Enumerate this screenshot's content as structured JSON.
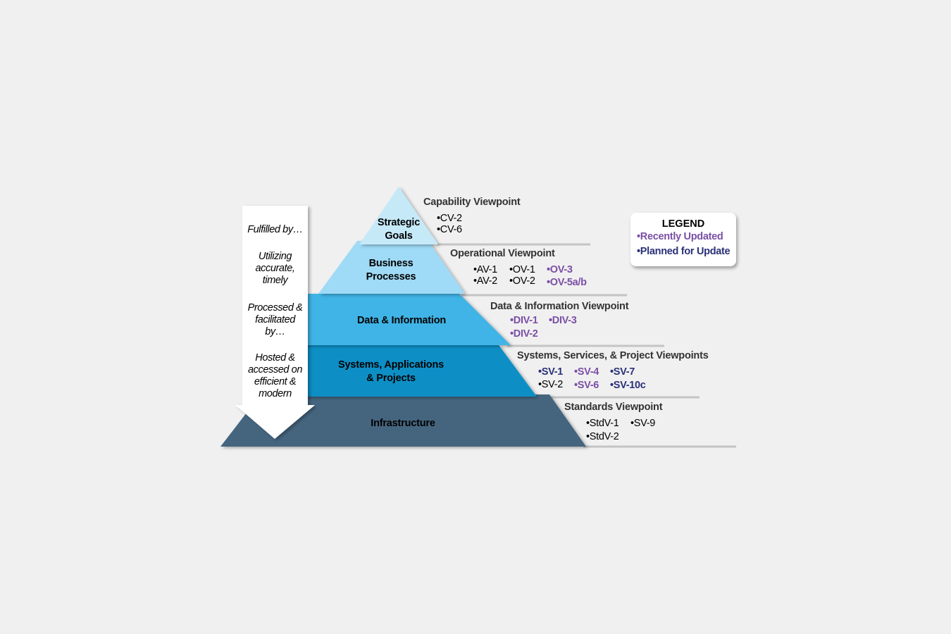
{
  "colors": {
    "recently_updated": "#7b4fa6",
    "planned_for_update": "#2a3178",
    "layer_strategic": "#c6e9f8",
    "layer_business": "#9fdaf6",
    "layer_data": "#41b4e6",
    "layer_systems": "#0a8fc6",
    "layer_infrastructure": "#45657f"
  },
  "pyramid": {
    "strategic": [
      "Strategic",
      "Goals"
    ],
    "business": [
      "Business",
      "Processes"
    ],
    "data": "Data & Information",
    "systems": [
      "Systems, Applications",
      "& Projects"
    ],
    "infrastructure": "Infrastructure"
  },
  "arrow": {
    "fulfilled": "Fulfilled by…",
    "utilizing": [
      "Utilizing",
      "accurate,",
      "timely"
    ],
    "processed": [
      "Processed &",
      "facilitated",
      "by…"
    ],
    "hosted": [
      "Hosted &",
      "accessed on",
      "efficient &",
      "modern"
    ]
  },
  "viewpoints": {
    "capability": {
      "title": "Capability Viewpoint",
      "items": [
        "•CV-2",
        "•CV-6"
      ]
    },
    "operational": {
      "title": "Operational Viewpoint",
      "items": [
        "•AV-1",
        "•AV-2",
        "•OV-1",
        "•OV-2",
        "•OV-3",
        "•OV-5a/b"
      ]
    },
    "data": {
      "title": "Data & Information Viewpoint",
      "items": [
        "•DIV-1",
        "•DIV-3",
        "•DIV-2"
      ]
    },
    "systems": {
      "title": "Systems, Services, & Project Viewpoints",
      "items": [
        "•SV-1",
        "•SV-2",
        "•SV-4",
        "•SV-6",
        "•SV-7",
        "•SV-10c"
      ]
    },
    "standards": {
      "title": "Standards Viewpoint",
      "items": [
        "•StdV-1",
        "•StdV-2",
        "•SV-9"
      ]
    }
  },
  "legend": {
    "title": "LEGEND",
    "recently_updated": "•Recently Updated",
    "planned_for_update": "•Planned for Update"
  }
}
